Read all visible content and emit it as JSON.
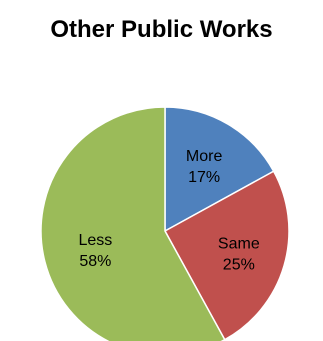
{
  "chart_data": {
    "type": "pie",
    "title": "Other Public Works",
    "slices": [
      {
        "label": "More",
        "value": 17,
        "pct_label": "17%",
        "color": "#4F81BD"
      },
      {
        "label": "Same",
        "value": 25,
        "pct_label": "25%",
        "color": "#C0504D"
      },
      {
        "label": "Less",
        "value": 58,
        "pct_label": "58%",
        "color": "#9BBB59"
      }
    ],
    "legend": "none",
    "start_angle": "12 o'clock, clockwise"
  }
}
